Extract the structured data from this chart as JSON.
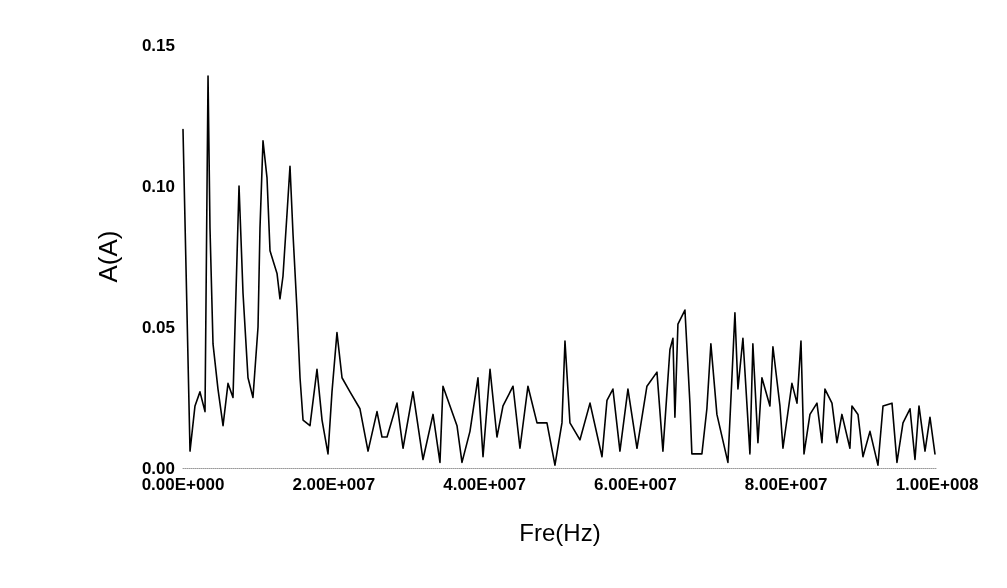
{
  "chart_data": {
    "type": "line",
    "xlabel": "Fre(Hz)",
    "ylabel": "A(A)",
    "marker": "none",
    "line_style": "solid",
    "xlim": [
      0,
      100000000.0
    ],
    "ylim": [
      0,
      0.15
    ],
    "xticks": [
      {
        "value": 0,
        "label": "0.00E+000"
      },
      {
        "value": 20000000.0,
        "label": "2.00E+007"
      },
      {
        "value": 40000000.0,
        "label": "4.00E+007"
      },
      {
        "value": 60000000.0,
        "label": "6.00E+007"
      },
      {
        "value": 80000000.0,
        "label": "8.00E+007"
      },
      {
        "value": 100000000.0,
        "label": "1.00E+008"
      }
    ],
    "yticks": [
      {
        "value": 0,
        "label": "0.00"
      },
      {
        "value": 0.05,
        "label": "0.05"
      },
      {
        "value": 0.1,
        "label": "0.10"
      },
      {
        "value": 0.15,
        "label": "0.15"
      }
    ],
    "series": [
      {
        "color": "#000000",
        "x": [
          0,
          930000.0,
          1590000.0,
          2250000.0,
          2920000.0,
          3320000.0,
          3580000.0,
          3980000.0,
          4640000.0,
          5310000.0,
          5970000.0,
          6630000.0,
          7430000.0,
          7960000.0,
          8620000.0,
          9280000.0,
          9950000.0,
          10210000.0,
          10610000.0,
          11140000.0,
          11540000.0,
          12470000.0,
          12860000.0,
          13260000.0,
          13790000.0,
          14190000.0,
          14590000.0,
          15120000.0,
          15520000.0,
          15920000.0,
          16840000.0,
          17770000.0,
          18440000.0,
          19230000.0,
          19760000.0,
          20420000.0,
          21090000.0,
          22150000.0,
          23470000.0,
          24540000.0,
          25730000.0,
          26390000.0,
          27060000.0,
          28380000.0,
          29180000.0,
          30500000.0,
          31830000.0,
          33160000.0,
          34080000.0,
          34480000.0,
          36340000.0,
          37000000.0,
          38060000.0,
          39120000.0,
          39790000.0,
          40720000.0,
          41640000.0,
          42440000.0,
          43770000.0,
          44690000.0,
          45750000.0,
          46950000.0,
          48270000.0,
          49330000.0,
          50260000.0,
          50660000.0,
          51320000.0,
          52650000.0,
          53980000.0,
          55570000.0,
          56230000.0,
          57020000.0,
          57950000.0,
          59010000.0,
          60210000.0,
          61530000.0,
          62860000.0,
          63650000.0,
          64580000.0,
          64980000.0,
          65240000.0,
          65640000.0,
          66570000.0,
          67230000.0,
          67490000.0,
          68820000.0,
          69480000.0,
          70010000.0,
          70810000.0,
          72270000.0,
          72800000.0,
          73200000.0,
          73600000.0,
          74260000.0,
          75190000.0,
          75580000.0,
          76250000.0,
          76780000.0,
          77840000.0,
          78240000.0,
          79170000.0,
          79570000.0,
          80760000.0,
          81430000.0,
          81960000.0,
          82360000.0,
          83150000.0,
          84080000.0,
          84740000.0,
          85140000.0,
          86070000.0,
          86730000.0,
          87390000.0,
          88450000.0,
          88720000.0,
          89520000.0,
          90180000.0,
          91110000.0,
          92170000.0,
          92840000.0,
          94030000.0,
          94690000.0,
          95490000.0,
          96420000.0,
          97080000.0,
          97610000.0,
          98410000.0,
          99070000.0,
          99730000.0
        ],
        "values": [
          0.12,
          0.006,
          0.022,
          0.027,
          0.02,
          0.139,
          0.085,
          0.044,
          0.028,
          0.015,
          0.03,
          0.025,
          0.1,
          0.062,
          0.032,
          0.025,
          0.05,
          0.085,
          0.116,
          0.103,
          0.077,
          0.069,
          0.06,
          0.068,
          0.09,
          0.107,
          0.083,
          0.056,
          0.032,
          0.017,
          0.015,
          0.035,
          0.017,
          0.005,
          0.027,
          0.048,
          0.032,
          0.027,
          0.021,
          0.006,
          0.02,
          0.011,
          0.011,
          0.023,
          0.007,
          0.027,
          0.003,
          0.019,
          0.002,
          0.029,
          0.015,
          0.002,
          0.013,
          0.032,
          0.004,
          0.035,
          0.011,
          0.022,
          0.029,
          0.007,
          0.029,
          0.016,
          0.016,
          0.001,
          0.016,
          0.045,
          0.016,
          0.01,
          0.023,
          0.004,
          0.024,
          0.028,
          0.006,
          0.028,
          0.007,
          0.029,
          0.034,
          0.006,
          0.042,
          0.046,
          0.018,
          0.051,
          0.056,
          0.023,
          0.005,
          0.005,
          0.021,
          0.044,
          0.019,
          0.002,
          0.032,
          0.055,
          0.028,
          0.046,
          0.005,
          0.044,
          0.009,
          0.032,
          0.022,
          0.043,
          0.022,
          0.007,
          0.03,
          0.023,
          0.045,
          0.005,
          0.019,
          0.023,
          0.009,
          0.028,
          0.023,
          0.009,
          0.019,
          0.007,
          0.022,
          0.019,
          0.004,
          0.013,
          0.001,
          0.022,
          0.023,
          0.002,
          0.016,
          0.021,
          0.003,
          0.022,
          0.006,
          0.018,
          0.005
        ]
      }
    ]
  }
}
